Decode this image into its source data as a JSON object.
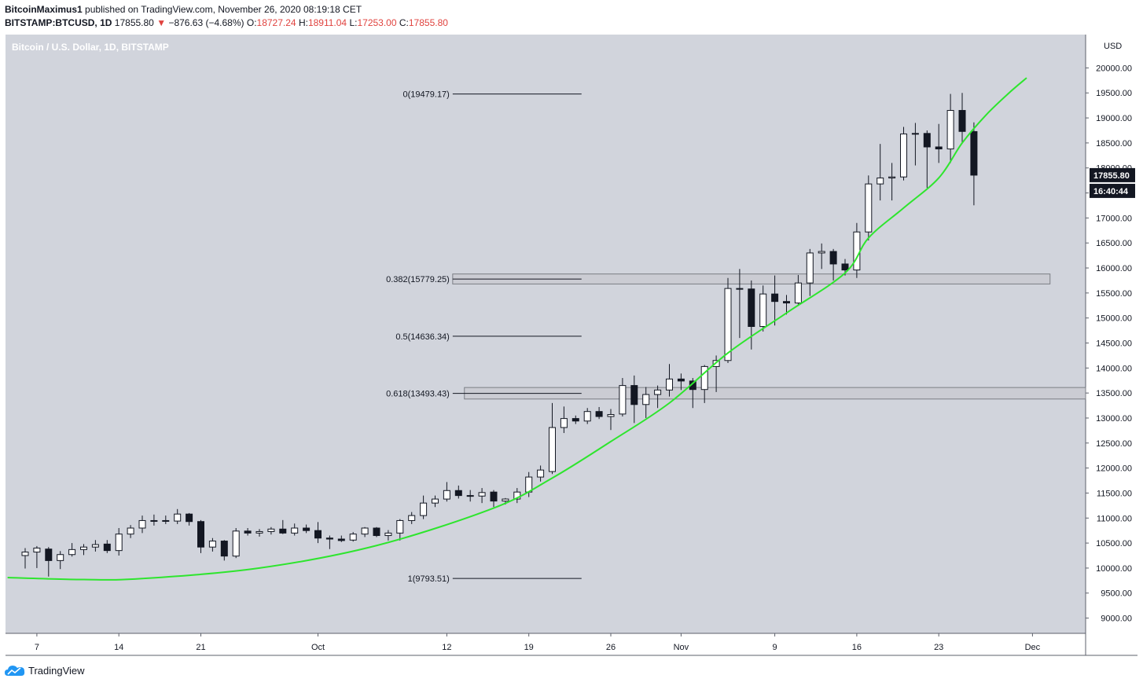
{
  "header": {
    "author": "BitcoinMaximus1",
    "published_text": "published on TradingView.com, November 26, 2020 08:19:18 CET",
    "symbol": "BITSTAMP:BTCUSD, 1D",
    "last": "17855.80",
    "change": "−876.63 (−4.68%)",
    "open_label": "O:",
    "open": "18727.24",
    "high_label": "H:",
    "high": "18911.04",
    "low_label": "L:",
    "low": "17253.00",
    "close_label": "C:",
    "close": "17855.80"
  },
  "footer": {
    "brand": "TradingView"
  },
  "colors": {
    "background": "#d1d4dc",
    "bull_body": "#ffffff",
    "bear_body": "#131722",
    "curve": "#2ee52e",
    "price_label_bg": "#131722"
  },
  "chart_data": {
    "type": "candlestick",
    "title": "Bitcoin / U.S. Dollar, 1D, BITSTAMP",
    "currency": "USD",
    "ylim": [
      8800,
      20500
    ],
    "y_ticks": [
      9000,
      9500,
      10000,
      10500,
      11000,
      11500,
      12000,
      12500,
      13000,
      13500,
      14000,
      14500,
      15000,
      15500,
      16000,
      16500,
      17000,
      17500,
      18000,
      18500,
      19000,
      19500,
      20000
    ],
    "x_labels": [
      {
        "day": 1,
        "label": "7"
      },
      {
        "day": 8,
        "label": "14"
      },
      {
        "day": 15,
        "label": "21"
      },
      {
        "day": 25,
        "label": "Oct"
      },
      {
        "day": 36,
        "label": "12"
      },
      {
        "day": 43,
        "label": "19"
      },
      {
        "day": 50,
        "label": "26"
      },
      {
        "day": 56,
        "label": "Nov"
      },
      {
        "day": 64,
        "label": "9"
      },
      {
        "day": 71,
        "label": "16"
      },
      {
        "day": 78,
        "label": "23"
      },
      {
        "day": 86,
        "label": "Dec"
      }
    ],
    "first_date": "2020-09-06",
    "candles": [
      {
        "o": 10250,
        "h": 10400,
        "l": 9990,
        "c": 10320
      },
      {
        "o": 10320,
        "h": 10440,
        "l": 10000,
        "c": 10400
      },
      {
        "o": 10380,
        "h": 10420,
        "l": 9830,
        "c": 10150
      },
      {
        "o": 10150,
        "h": 10340,
        "l": 9980,
        "c": 10270
      },
      {
        "o": 10270,
        "h": 10500,
        "l": 10230,
        "c": 10370
      },
      {
        "o": 10370,
        "h": 10480,
        "l": 10260,
        "c": 10420
      },
      {
        "o": 10420,
        "h": 10560,
        "l": 10330,
        "c": 10470
      },
      {
        "o": 10480,
        "h": 10560,
        "l": 10300,
        "c": 10350
      },
      {
        "o": 10350,
        "h": 10800,
        "l": 10250,
        "c": 10680
      },
      {
        "o": 10680,
        "h": 10860,
        "l": 10600,
        "c": 10800
      },
      {
        "o": 10800,
        "h": 11050,
        "l": 10700,
        "c": 10950
      },
      {
        "o": 10950,
        "h": 11070,
        "l": 10850,
        "c": 10950
      },
      {
        "o": 10950,
        "h": 11050,
        "l": 10880,
        "c": 10940
      },
      {
        "o": 10940,
        "h": 11180,
        "l": 10880,
        "c": 11080
      },
      {
        "o": 11080,
        "h": 11100,
        "l": 10850,
        "c": 10930
      },
      {
        "o": 10930,
        "h": 10960,
        "l": 10300,
        "c": 10420
      },
      {
        "o": 10420,
        "h": 10600,
        "l": 10330,
        "c": 10540
      },
      {
        "o": 10540,
        "h": 10560,
        "l": 10150,
        "c": 10240
      },
      {
        "o": 10240,
        "h": 10800,
        "l": 10200,
        "c": 10740
      },
      {
        "o": 10740,
        "h": 10800,
        "l": 10650,
        "c": 10700
      },
      {
        "o": 10700,
        "h": 10780,
        "l": 10630,
        "c": 10730
      },
      {
        "o": 10730,
        "h": 10820,
        "l": 10670,
        "c": 10780
      },
      {
        "o": 10780,
        "h": 10960,
        "l": 10680,
        "c": 10700
      },
      {
        "o": 10700,
        "h": 10890,
        "l": 10650,
        "c": 10800
      },
      {
        "o": 10800,
        "h": 10870,
        "l": 10700,
        "c": 10750
      },
      {
        "o": 10750,
        "h": 10920,
        "l": 10500,
        "c": 10600
      },
      {
        "o": 10600,
        "h": 10650,
        "l": 10380,
        "c": 10580
      },
      {
        "o": 10580,
        "h": 10650,
        "l": 10520,
        "c": 10550
      },
      {
        "o": 10560,
        "h": 10720,
        "l": 10530,
        "c": 10680
      },
      {
        "o": 10680,
        "h": 10820,
        "l": 10620,
        "c": 10800
      },
      {
        "o": 10800,
        "h": 10820,
        "l": 10620,
        "c": 10650
      },
      {
        "o": 10650,
        "h": 10760,
        "l": 10550,
        "c": 10700
      },
      {
        "o": 10700,
        "h": 10980,
        "l": 10550,
        "c": 10950
      },
      {
        "o": 10950,
        "h": 11120,
        "l": 10880,
        "c": 11050
      },
      {
        "o": 11050,
        "h": 11450,
        "l": 10980,
        "c": 11300
      },
      {
        "o": 11300,
        "h": 11450,
        "l": 11220,
        "c": 11380
      },
      {
        "o": 11380,
        "h": 11720,
        "l": 11330,
        "c": 11550
      },
      {
        "o": 11550,
        "h": 11650,
        "l": 11390,
        "c": 11450
      },
      {
        "o": 11450,
        "h": 11560,
        "l": 11330,
        "c": 11440
      },
      {
        "o": 11440,
        "h": 11600,
        "l": 11300,
        "c": 11510
      },
      {
        "o": 11520,
        "h": 11560,
        "l": 11220,
        "c": 11340
      },
      {
        "o": 11340,
        "h": 11400,
        "l": 11270,
        "c": 11380
      },
      {
        "o": 11380,
        "h": 11600,
        "l": 11300,
        "c": 11520
      },
      {
        "o": 11520,
        "h": 11920,
        "l": 11420,
        "c": 11820
      },
      {
        "o": 11820,
        "h": 12050,
        "l": 11730,
        "c": 11960
      },
      {
        "o": 11930,
        "h": 13300,
        "l": 11880,
        "c": 12810
      },
      {
        "o": 12810,
        "h": 13230,
        "l": 12700,
        "c": 12990
      },
      {
        "o": 12990,
        "h": 13050,
        "l": 12880,
        "c": 12940
      },
      {
        "o": 12940,
        "h": 13200,
        "l": 12880,
        "c": 13130
      },
      {
        "o": 13130,
        "h": 13220,
        "l": 12980,
        "c": 13030
      },
      {
        "o": 13030,
        "h": 13180,
        "l": 12760,
        "c": 13070
      },
      {
        "o": 13080,
        "h": 13800,
        "l": 13030,
        "c": 13650
      },
      {
        "o": 13650,
        "h": 13850,
        "l": 12900,
        "c": 13270
      },
      {
        "o": 13270,
        "h": 13620,
        "l": 13000,
        "c": 13470
      },
      {
        "o": 13470,
        "h": 13650,
        "l": 13200,
        "c": 13560
      },
      {
        "o": 13560,
        "h": 14080,
        "l": 13430,
        "c": 13780
      },
      {
        "o": 13780,
        "h": 13890,
        "l": 13560,
        "c": 13740
      },
      {
        "o": 13740,
        "h": 13800,
        "l": 13200,
        "c": 13570
      },
      {
        "o": 13570,
        "h": 14060,
        "l": 13300,
        "c": 14030
      },
      {
        "o": 14030,
        "h": 14250,
        "l": 13520,
        "c": 14150
      },
      {
        "o": 14150,
        "h": 15800,
        "l": 14100,
        "c": 15590
      },
      {
        "o": 15590,
        "h": 15980,
        "l": 14600,
        "c": 15580
      },
      {
        "o": 15580,
        "h": 15750,
        "l": 14370,
        "c": 14830
      },
      {
        "o": 14830,
        "h": 15650,
        "l": 14730,
        "c": 15480
      },
      {
        "o": 15480,
        "h": 15850,
        "l": 14850,
        "c": 15330
      },
      {
        "o": 15330,
        "h": 15460,
        "l": 15070,
        "c": 15300
      },
      {
        "o": 15300,
        "h": 15860,
        "l": 15240,
        "c": 15700
      },
      {
        "o": 15700,
        "h": 16380,
        "l": 15440,
        "c": 16300
      },
      {
        "o": 16300,
        "h": 16490,
        "l": 15980,
        "c": 16330
      },
      {
        "o": 16330,
        "h": 16380,
        "l": 15750,
        "c": 16080
      },
      {
        "o": 16080,
        "h": 16180,
        "l": 15850,
        "c": 15960
      },
      {
        "o": 15960,
        "h": 16900,
        "l": 15800,
        "c": 16720
      },
      {
        "o": 16720,
        "h": 17850,
        "l": 16550,
        "c": 17680
      },
      {
        "o": 17680,
        "h": 18480,
        "l": 17350,
        "c": 17800
      },
      {
        "o": 17800,
        "h": 18100,
        "l": 17350,
        "c": 17820
      },
      {
        "o": 17820,
        "h": 18820,
        "l": 17750,
        "c": 18680
      },
      {
        "o": 18680,
        "h": 18900,
        "l": 18050,
        "c": 18690
      },
      {
        "o": 18690,
        "h": 18750,
        "l": 17600,
        "c": 18420
      },
      {
        "o": 18420,
        "h": 18880,
        "l": 18100,
        "c": 18380
      },
      {
        "o": 18380,
        "h": 19480,
        "l": 18100,
        "c": 19150
      },
      {
        "o": 19150,
        "h": 19500,
        "l": 18500,
        "c": 18730
      },
      {
        "o": 18727.24,
        "h": 18911.04,
        "l": 17253,
        "c": 17855.8
      }
    ],
    "fibonacci": [
      {
        "label": "0(19479.17)",
        "value": 19479.17
      },
      {
        "label": "0.382(15779.25)",
        "value": 15779.25
      },
      {
        "label": "0.5(14636.34)",
        "value": 14636.34
      },
      {
        "label": "0.618(13493.43)",
        "value": 13493.43
      },
      {
        "label": "1(9793.51)",
        "value": 9793.51
      }
    ],
    "fib_x_range": [
      36.5,
      47.5
    ],
    "zones": [
      {
        "y_low": 15680,
        "y_high": 15880,
        "x_from": 36.5,
        "x_to": 87.5
      },
      {
        "y_low": 13380,
        "y_high": 13610,
        "x_from": 37.5,
        "x_to": 95
      }
    ],
    "curve": [
      {
        "x": -1.5,
        "y": 9810
      },
      {
        "x": 5,
        "y": 9770
      },
      {
        "x": 10,
        "y": 9790
      },
      {
        "x": 20,
        "y": 10000
      },
      {
        "x": 30,
        "y": 10450
      },
      {
        "x": 40,
        "y": 11200
      },
      {
        "x": 45,
        "y": 11800
      },
      {
        "x": 50,
        "y": 12530
      },
      {
        "x": 55,
        "y": 13300
      },
      {
        "x": 60,
        "y": 14300
      },
      {
        "x": 65,
        "y": 15100
      },
      {
        "x": 70,
        "y": 15900
      },
      {
        "x": 72,
        "y": 16600
      },
      {
        "x": 75,
        "y": 17200
      },
      {
        "x": 78,
        "y": 17800
      },
      {
        "x": 80,
        "y": 18500
      },
      {
        "x": 82,
        "y": 19050
      },
      {
        "x": 84,
        "y": 19500
      },
      {
        "x": 85.5,
        "y": 19800
      }
    ],
    "price_label": "17855.80",
    "countdown": "16:40:44"
  }
}
